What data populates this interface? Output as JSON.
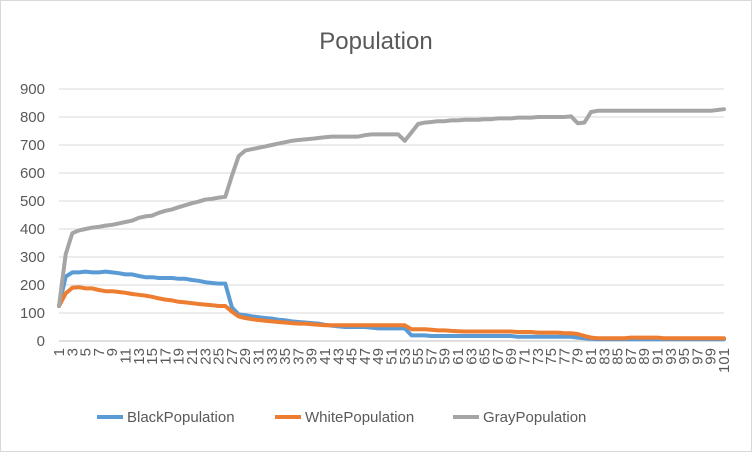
{
  "chart_data": {
    "type": "line",
    "title": "Population",
    "xlabel": "",
    "ylabel": "",
    "ylim": [
      0,
      900
    ],
    "ytick_step": 100,
    "x": [
      1,
      2,
      3,
      4,
      5,
      6,
      7,
      8,
      9,
      10,
      11,
      12,
      13,
      14,
      15,
      16,
      17,
      18,
      19,
      20,
      21,
      22,
      23,
      24,
      25,
      26,
      27,
      28,
      29,
      30,
      31,
      32,
      33,
      34,
      35,
      36,
      37,
      38,
      39,
      40,
      41,
      42,
      43,
      44,
      45,
      46,
      47,
      48,
      49,
      50,
      51,
      52,
      53,
      54,
      55,
      56,
      57,
      58,
      59,
      60,
      61,
      62,
      63,
      64,
      65,
      66,
      67,
      68,
      69,
      70,
      71,
      72,
      73,
      74,
      75,
      76,
      77,
      78,
      79,
      80,
      81,
      82,
      83,
      84,
      85,
      86,
      87,
      88,
      89,
      90,
      91,
      92,
      93,
      94,
      95,
      96,
      97,
      98,
      99,
      100,
      101
    ],
    "xtick_labels": [
      "1",
      "3",
      "5",
      "7",
      "9",
      "11",
      "13",
      "15",
      "17",
      "19",
      "21",
      "23",
      "25",
      "27",
      "29",
      "31",
      "33",
      "35",
      "37",
      "39",
      "41",
      "43",
      "45",
      "47",
      "49",
      "51",
      "53",
      "55",
      "57",
      "59",
      "61",
      "63",
      "65",
      "67",
      "69",
      "71",
      "73",
      "75",
      "77",
      "79",
      "81",
      "83",
      "85",
      "87",
      "89",
      "91",
      "93",
      "95",
      "97",
      "99",
      "101"
    ],
    "grid": true,
    "legend_position": "bottom",
    "series": [
      {
        "name": "BlackPopulation",
        "color": "#5b9bd5",
        "values": [
          125,
          230,
          245,
          245,
          248,
          245,
          245,
          248,
          245,
          242,
          238,
          238,
          232,
          228,
          228,
          225,
          225,
          225,
          222,
          222,
          218,
          215,
          210,
          207,
          205,
          205,
          120,
          95,
          92,
          88,
          85,
          82,
          80,
          76,
          74,
          70,
          68,
          66,
          64,
          62,
          58,
          55,
          52,
          50,
          50,
          50,
          50,
          48,
          45,
          45,
          45,
          45,
          45,
          20,
          20,
          20,
          18,
          18,
          18,
          18,
          18,
          18,
          18,
          18,
          18,
          18,
          18,
          18,
          18,
          15,
          15,
          15,
          15,
          15,
          15,
          15,
          15,
          15,
          12,
          10,
          8,
          6,
          6,
          6,
          6,
          6,
          6,
          6,
          6,
          6,
          6,
          6,
          6,
          6,
          6,
          6,
          6,
          6,
          6,
          6,
          6
        ]
      },
      {
        "name": "WhitePopulation",
        "color": "#ed7d31",
        "values": [
          125,
          170,
          190,
          192,
          188,
          188,
          182,
          178,
          178,
          175,
          172,
          168,
          165,
          162,
          158,
          152,
          148,
          145,
          140,
          138,
          135,
          132,
          130,
          128,
          125,
          125,
          105,
          88,
          82,
          78,
          75,
          72,
          70,
          68,
          66,
          64,
          62,
          62,
          60,
          58,
          56,
          56,
          56,
          56,
          56,
          56,
          56,
          56,
          56,
          56,
          56,
          56,
          56,
          42,
          42,
          42,
          40,
          38,
          38,
          36,
          35,
          34,
          34,
          34,
          34,
          34,
          34,
          34,
          34,
          32,
          32,
          32,
          30,
          30,
          30,
          30,
          28,
          28,
          25,
          18,
          12,
          10,
          10,
          10,
          10,
          10,
          12,
          12,
          12,
          12,
          12,
          10,
          10,
          10,
          10,
          10,
          10,
          10,
          10,
          10,
          10
        ]
      },
      {
        "name": "GrayPopulation",
        "color": "#a5a5a5",
        "values": [
          125,
          310,
          385,
          395,
          400,
          405,
          408,
          412,
          415,
          420,
          425,
          430,
          440,
          445,
          448,
          458,
          465,
          470,
          478,
          485,
          492,
          498,
          505,
          508,
          512,
          515,
          590,
          660,
          680,
          685,
          690,
          695,
          700,
          705,
          710,
          715,
          718,
          720,
          722,
          725,
          728,
          730,
          730,
          730,
          730,
          730,
          735,
          738,
          738,
          738,
          738,
          738,
          715,
          745,
          775,
          780,
          782,
          785,
          785,
          788,
          788,
          790,
          790,
          790,
          792,
          792,
          795,
          795,
          795,
          798,
          798,
          798,
          800,
          800,
          800,
          800,
          800,
          802,
          778,
          780,
          818,
          822,
          822,
          822,
          822,
          822,
          822,
          822,
          822,
          822,
          822,
          822,
          822,
          822,
          822,
          822,
          822,
          822,
          822,
          825,
          828
        ]
      }
    ]
  }
}
